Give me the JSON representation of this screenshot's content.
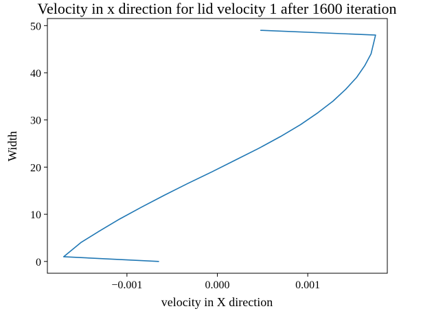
{
  "chart_data": {
    "type": "line",
    "title": "Velocity in x direction for lid velocity 1 after 1600 iteration",
    "xlabel": "velocity in X direction",
    "ylabel": "Width",
    "xlim": [
      -0.00188,
      0.00188
    ],
    "ylim": [
      -2.5,
      51.5
    ],
    "x_ticks": [
      {
        "value": -0.001,
        "label": "−0.001"
      },
      {
        "value": 0.0,
        "label": "0.000"
      },
      {
        "value": 0.001,
        "label": "0.001"
      }
    ],
    "y_ticks": [
      {
        "value": 0,
        "label": "0"
      },
      {
        "value": 10,
        "label": "10"
      },
      {
        "value": 20,
        "label": "20"
      },
      {
        "value": 30,
        "label": "30"
      },
      {
        "value": 40,
        "label": "40"
      },
      {
        "value": 50,
        "label": "50"
      }
    ],
    "grid": false,
    "series": [
      {
        "color": "#1f77b4",
        "x": [
          -0.00065,
          -0.0017,
          -0.00151,
          -0.0013,
          -0.00108,
          -0.00084,
          -0.00059,
          -0.00033,
          -6e-05,
          0.0002,
          0.00046,
          0.0007,
          0.00092,
          0.00111,
          0.00128,
          0.00142,
          0.00154,
          0.00163,
          0.0017,
          0.00175,
          0.00048
        ],
        "y": [
          0,
          1,
          4,
          6.5,
          9,
          11.5,
          14,
          16.5,
          19,
          21.5,
          24,
          26.5,
          29,
          31.5,
          34,
          36.5,
          39,
          41.5,
          44,
          48,
          49
        ]
      }
    ]
  }
}
